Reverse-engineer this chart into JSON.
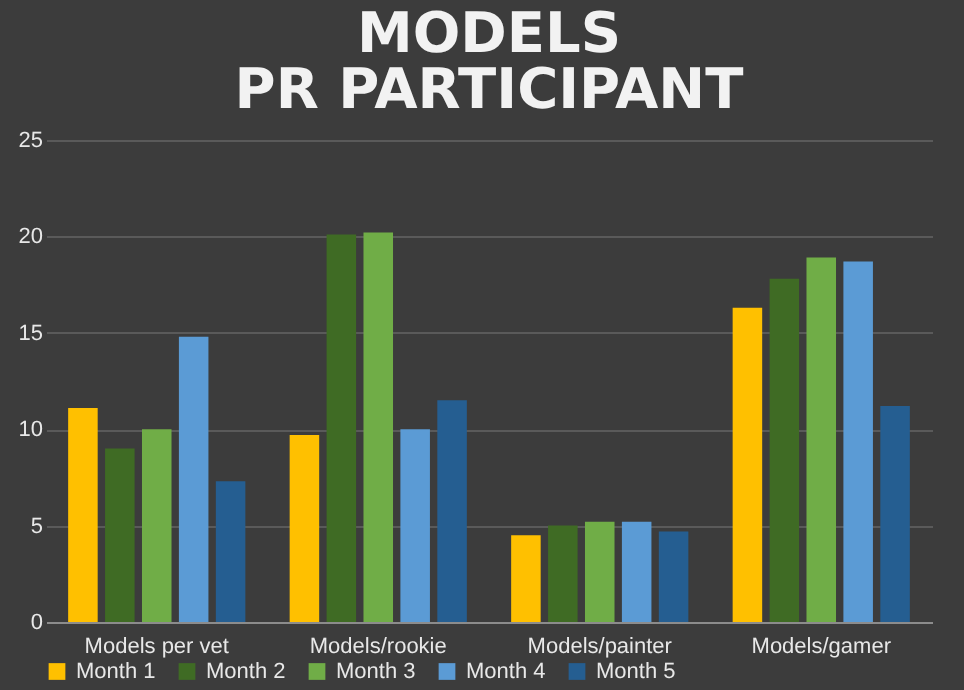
{
  "chart_data": {
    "type": "bar",
    "title": "MODELS PR PARTICIPANT",
    "categories": [
      "Models per vet",
      "Models/rookie",
      "Models/painter",
      "Models/gamer"
    ],
    "series": [
      {
        "name": "Month 1",
        "color": "#ffc000",
        "values": [
          11.1,
          9.7,
          4.5,
          16.3
        ]
      },
      {
        "name": "Month 2",
        "color": "#3f6b24",
        "values": [
          9.0,
          20.1,
          5.0,
          17.8
        ]
      },
      {
        "name": "Month 3",
        "color": "#70ad47",
        "values": [
          10.0,
          20.2,
          5.2,
          18.9
        ]
      },
      {
        "name": "Month 4",
        "color": "#5b9bd5",
        "values": [
          14.8,
          10.0,
          5.2,
          18.7
        ]
      },
      {
        "name": "Month 5",
        "color": "#255e91",
        "values": [
          7.3,
          11.5,
          4.7,
          11.2
        ]
      }
    ],
    "ylim": [
      0,
      25
    ],
    "yticks": [
      0,
      5,
      10,
      15,
      20,
      25
    ],
    "grid": "y",
    "legend": "bottom"
  }
}
